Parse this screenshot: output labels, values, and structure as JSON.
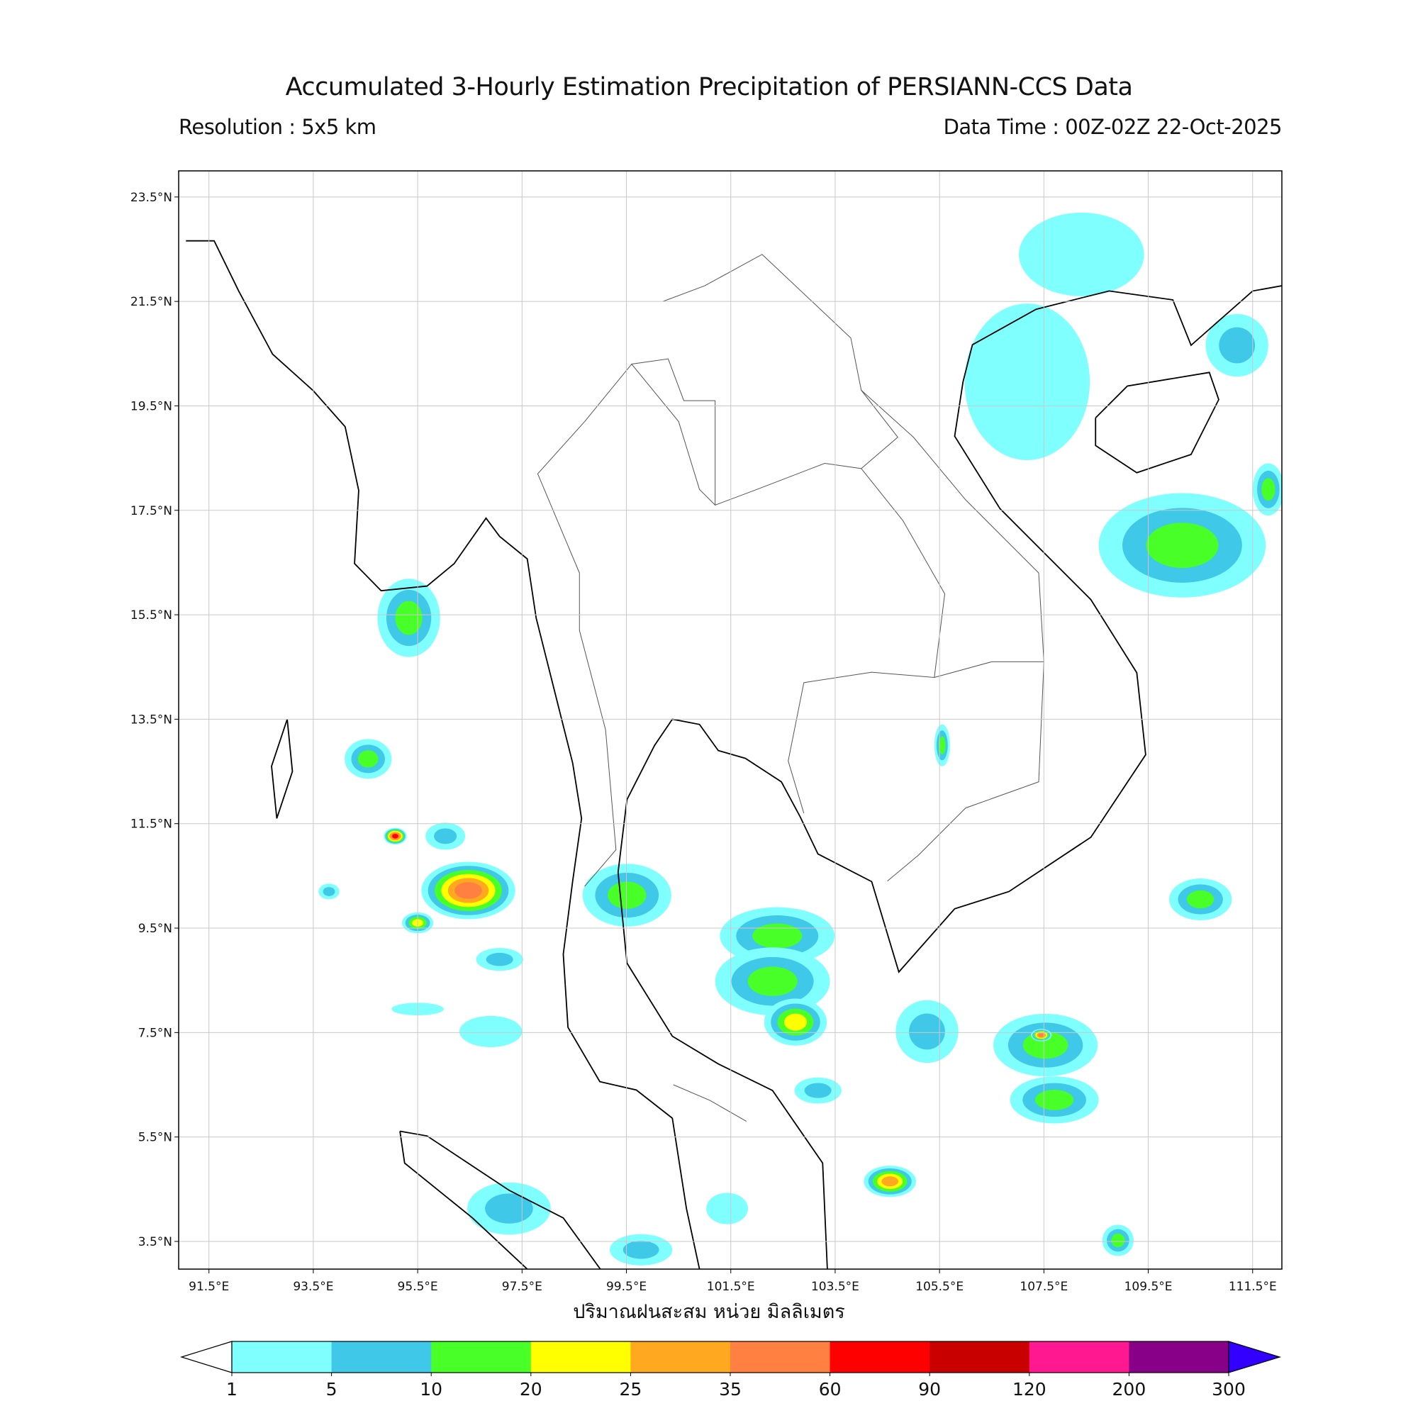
{
  "title": "Accumulated 3-Hourly Estimation Precipitation of PERSIANN-CCS Data",
  "resolution": "Resolution : 5x5 km",
  "data_time": "Data Time : 00Z-02Z 22-Oct-2025",
  "xlabel": "ปริมาณฝนสะสม หน่วย มิลลิเมตร",
  "map": {
    "extent": {
      "lon": [
        90.92,
        112.06
      ],
      "lat": [
        2.97,
        24.0
      ]
    },
    "lon_ticks": [
      "91.5°E",
      "93.5°E",
      "95.5°E",
      "97.5°E",
      "99.5°E",
      "101.5°E",
      "103.5°E",
      "105.5°E",
      "107.5°E",
      "109.5°E",
      "111.5°E"
    ],
    "lat_ticks": [
      "23.5°N",
      "21.5°N",
      "19.5°N",
      "17.5°N",
      "15.5°N",
      "13.5°N",
      "11.5°N",
      "9.5°N",
      "7.5°N",
      "5.5°N",
      "3.5°N"
    ],
    "grid": true,
    "rain_areas": [
      {
        "lon": 95.33,
        "lat": 15.44,
        "rx": 0.6,
        "ry": 0.75,
        "max_class": 2
      },
      {
        "lon": 94.55,
        "lat": 12.74,
        "rx": 0.45,
        "ry": 0.38,
        "max_class": 2
      },
      {
        "lon": 96.47,
        "lat": 10.22,
        "rx": 0.9,
        "ry": 0.55,
        "max_class": 5
      },
      {
        "lon": 96.03,
        "lat": 11.26,
        "rx": 0.38,
        "ry": 0.26,
        "max_class": 1
      },
      {
        "lon": 95.07,
        "lat": 11.26,
        "rx": 0.22,
        "ry": 0.16,
        "max_class": 6
      },
      {
        "lon": 93.8,
        "lat": 10.2,
        "rx": 0.2,
        "ry": 0.15,
        "max_class": 1
      },
      {
        "lon": 95.5,
        "lat": 9.6,
        "rx": 0.3,
        "ry": 0.2,
        "max_class": 3
      },
      {
        "lon": 99.51,
        "lat": 10.13,
        "rx": 0.85,
        "ry": 0.6,
        "max_class": 2
      },
      {
        "lon": 102.39,
        "lat": 9.35,
        "rx": 1.1,
        "ry": 0.55,
        "max_class": 2
      },
      {
        "lon": 102.3,
        "lat": 8.48,
        "rx": 1.1,
        "ry": 0.65,
        "max_class": 2
      },
      {
        "lon": 102.74,
        "lat": 7.7,
        "rx": 0.6,
        "ry": 0.45,
        "max_class": 3
      },
      {
        "lon": 105.26,
        "lat": 7.52,
        "rx": 0.6,
        "ry": 0.6,
        "max_class": 1
      },
      {
        "lon": 107.53,
        "lat": 7.26,
        "rx": 1.0,
        "ry": 0.6,
        "max_class": 2
      },
      {
        "lon": 107.45,
        "lat": 7.45,
        "rx": 0.2,
        "ry": 0.12,
        "max_class": 5
      },
      {
        "lon": 107.7,
        "lat": 6.21,
        "rx": 0.85,
        "ry": 0.45,
        "max_class": 2
      },
      {
        "lon": 110.15,
        "lat": 16.83,
        "rx": 1.6,
        "ry": 1.0,
        "max_class": 2
      },
      {
        "lon": 111.2,
        "lat": 20.66,
        "rx": 0.6,
        "ry": 0.6,
        "max_class": 1
      },
      {
        "lon": 111.8,
        "lat": 17.9,
        "rx": 0.3,
        "ry": 0.5,
        "max_class": 2
      },
      {
        "lon": 110.5,
        "lat": 10.05,
        "rx": 0.6,
        "ry": 0.4,
        "max_class": 2
      },
      {
        "lon": 104.55,
        "lat": 4.65,
        "rx": 0.5,
        "ry": 0.3,
        "max_class": 4
      },
      {
        "lon": 103.17,
        "lat": 6.39,
        "rx": 0.45,
        "ry": 0.25,
        "max_class": 1
      },
      {
        "lon": 97.25,
        "lat": 4.13,
        "rx": 0.8,
        "ry": 0.5,
        "max_class": 1
      },
      {
        "lon": 99.78,
        "lat": 3.34,
        "rx": 0.6,
        "ry": 0.3,
        "max_class": 1
      },
      {
        "lon": 96.9,
        "lat": 7.52,
        "rx": 0.6,
        "ry": 0.3,
        "max_class": 0
      },
      {
        "lon": 97.07,
        "lat": 8.9,
        "rx": 0.45,
        "ry": 0.22,
        "max_class": 1
      },
      {
        "lon": 95.5,
        "lat": 7.95,
        "rx": 0.5,
        "ry": 0.12,
        "max_class": 0
      },
      {
        "lon": 101.43,
        "lat": 4.13,
        "rx": 0.4,
        "ry": 0.3,
        "max_class": 0
      },
      {
        "lon": 108.92,
        "lat": 3.52,
        "rx": 0.3,
        "ry": 0.3,
        "max_class": 2
      },
      {
        "lon": 107.18,
        "lat": 19.96,
        "rx": 1.2,
        "ry": 1.5,
        "max_class": 0
      },
      {
        "lon": 108.22,
        "lat": 22.4,
        "rx": 1.2,
        "ry": 0.8,
        "max_class": 0
      },
      {
        "lon": 105.55,
        "lat": 13.0,
        "rx": 0.15,
        "ry": 0.4,
        "max_class": 2
      }
    ]
  },
  "colorbar": {
    "labels": [
      "1",
      "5",
      "10",
      "20",
      "25",
      "35",
      "60",
      "90",
      "120",
      "200",
      "300"
    ],
    "colors": [
      "#80ffff",
      "#40c8e8",
      "#48ff28",
      "#ffff00",
      "#ffa820",
      "#ff8040",
      "#ff0000",
      "#c80000",
      "#ff1890",
      "#880088"
    ],
    "under_color": "#ffffff",
    "over_color": "#3300ff"
  }
}
